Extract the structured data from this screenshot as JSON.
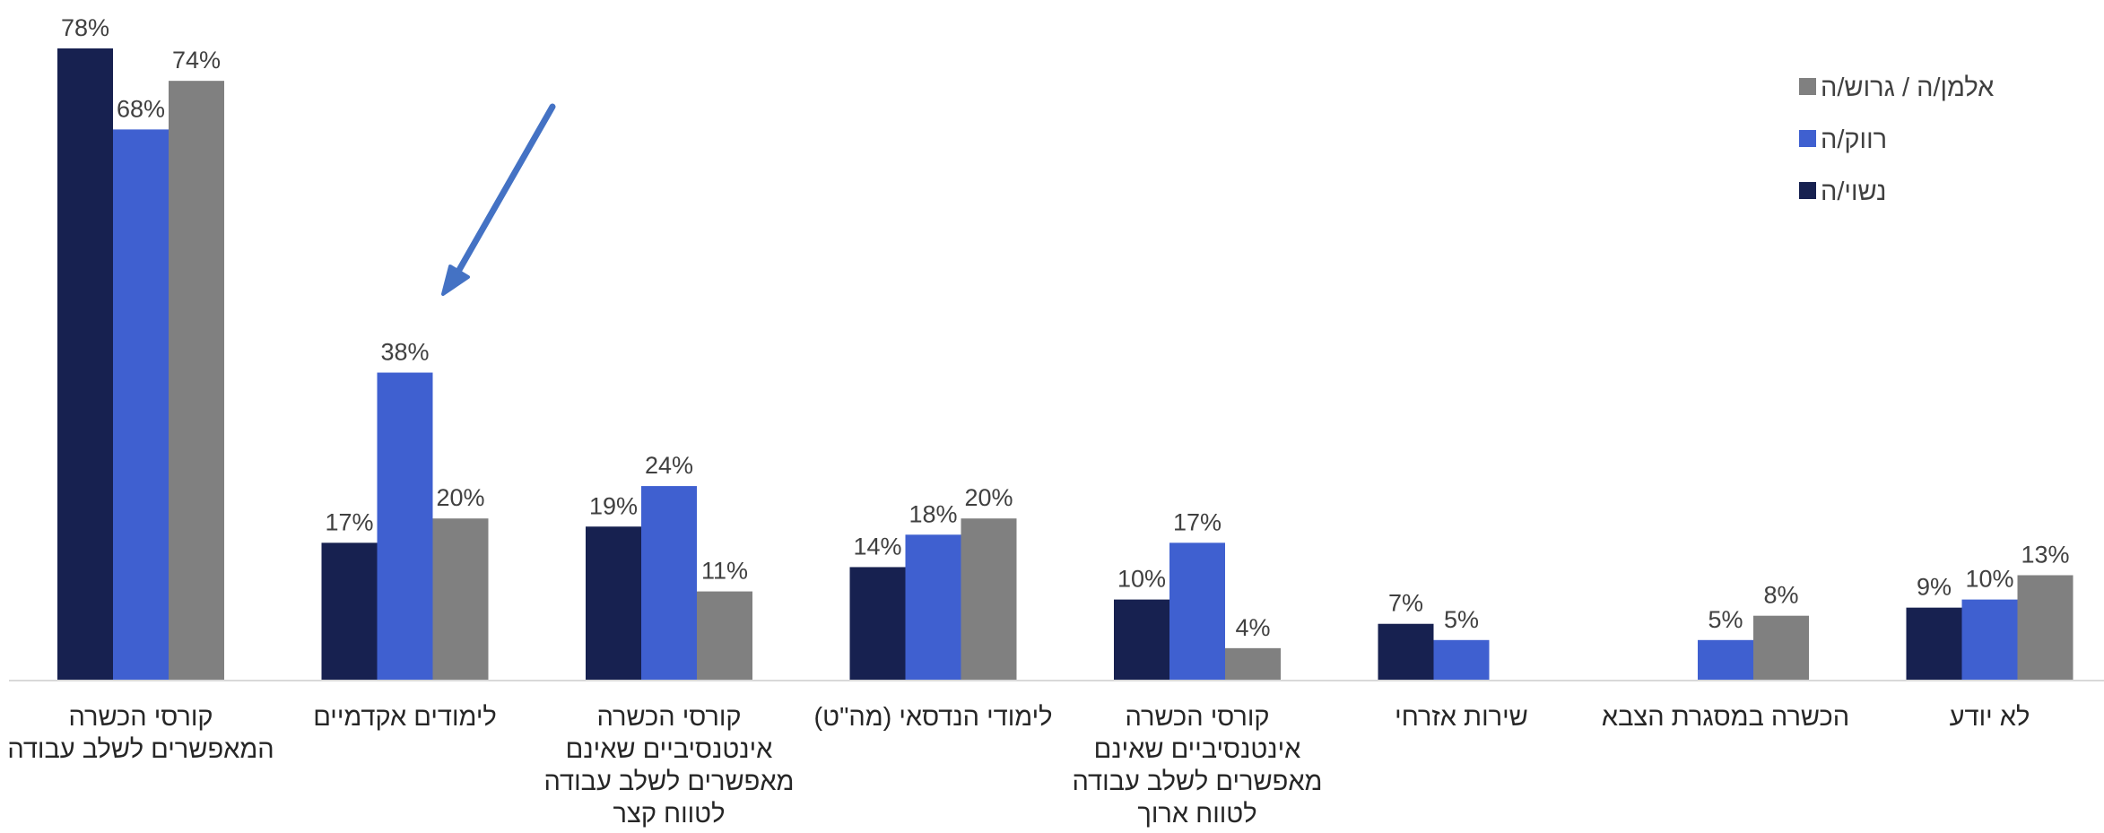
{
  "chart_data": {
    "type": "bar",
    "ylim": [
      0,
      80
    ],
    "grid": false,
    "legend_position": "top-right",
    "categories": [
      [
        "קורסי הכשרה",
        "המאפשרים לשלב עבודה"
      ],
      [
        "לימודים אקדמיים"
      ],
      [
        "קורסי הכשרה",
        "אינטנסיביים שאינם",
        "מאפשרים לשלב עבודה",
        "לטווח קצר"
      ],
      [
        "לימודי הנדסאי (מה\"ט)"
      ],
      [
        "קורסי הכשרה",
        "אינטנסיביים שאינם",
        "מאפשרים לשלב עבודה",
        "לטווח ארוך"
      ],
      [
        "שירות אזרחי"
      ],
      [
        "הכשרה במסגרת הצבא"
      ],
      [
        "לא יודע"
      ]
    ],
    "series": [
      {
        "name": "נשוי/ה",
        "color": "#172150",
        "values": [
          78,
          17,
          19,
          14,
          10,
          7,
          null,
          9
        ],
        "labels": [
          "78%",
          "17%",
          "19%",
          "14%",
          "10%",
          "7%",
          "",
          "9%"
        ]
      },
      {
        "name": "רווק/ה",
        "color": "#3f60d0",
        "values": [
          68,
          38,
          24,
          18,
          17,
          5,
          5,
          10
        ],
        "labels": [
          "68%",
          "38%",
          "24%",
          "18%",
          "17%",
          "5%",
          "5%",
          "10%"
        ]
      },
      {
        "name": "אלמן/ה / גרוש/ה",
        "color": "#808080",
        "values": [
          74,
          20,
          11,
          20,
          4,
          null,
          8,
          13
        ],
        "labels": [
          "74%",
          "20%",
          "11%",
          "20%",
          "4%",
          "",
          "8%",
          "13%"
        ]
      }
    ],
    "legend_order": [
      2,
      1,
      0
    ],
    "annotation": {
      "type": "arrow",
      "color": "#4472c4",
      "points_to_category": 1
    }
  }
}
